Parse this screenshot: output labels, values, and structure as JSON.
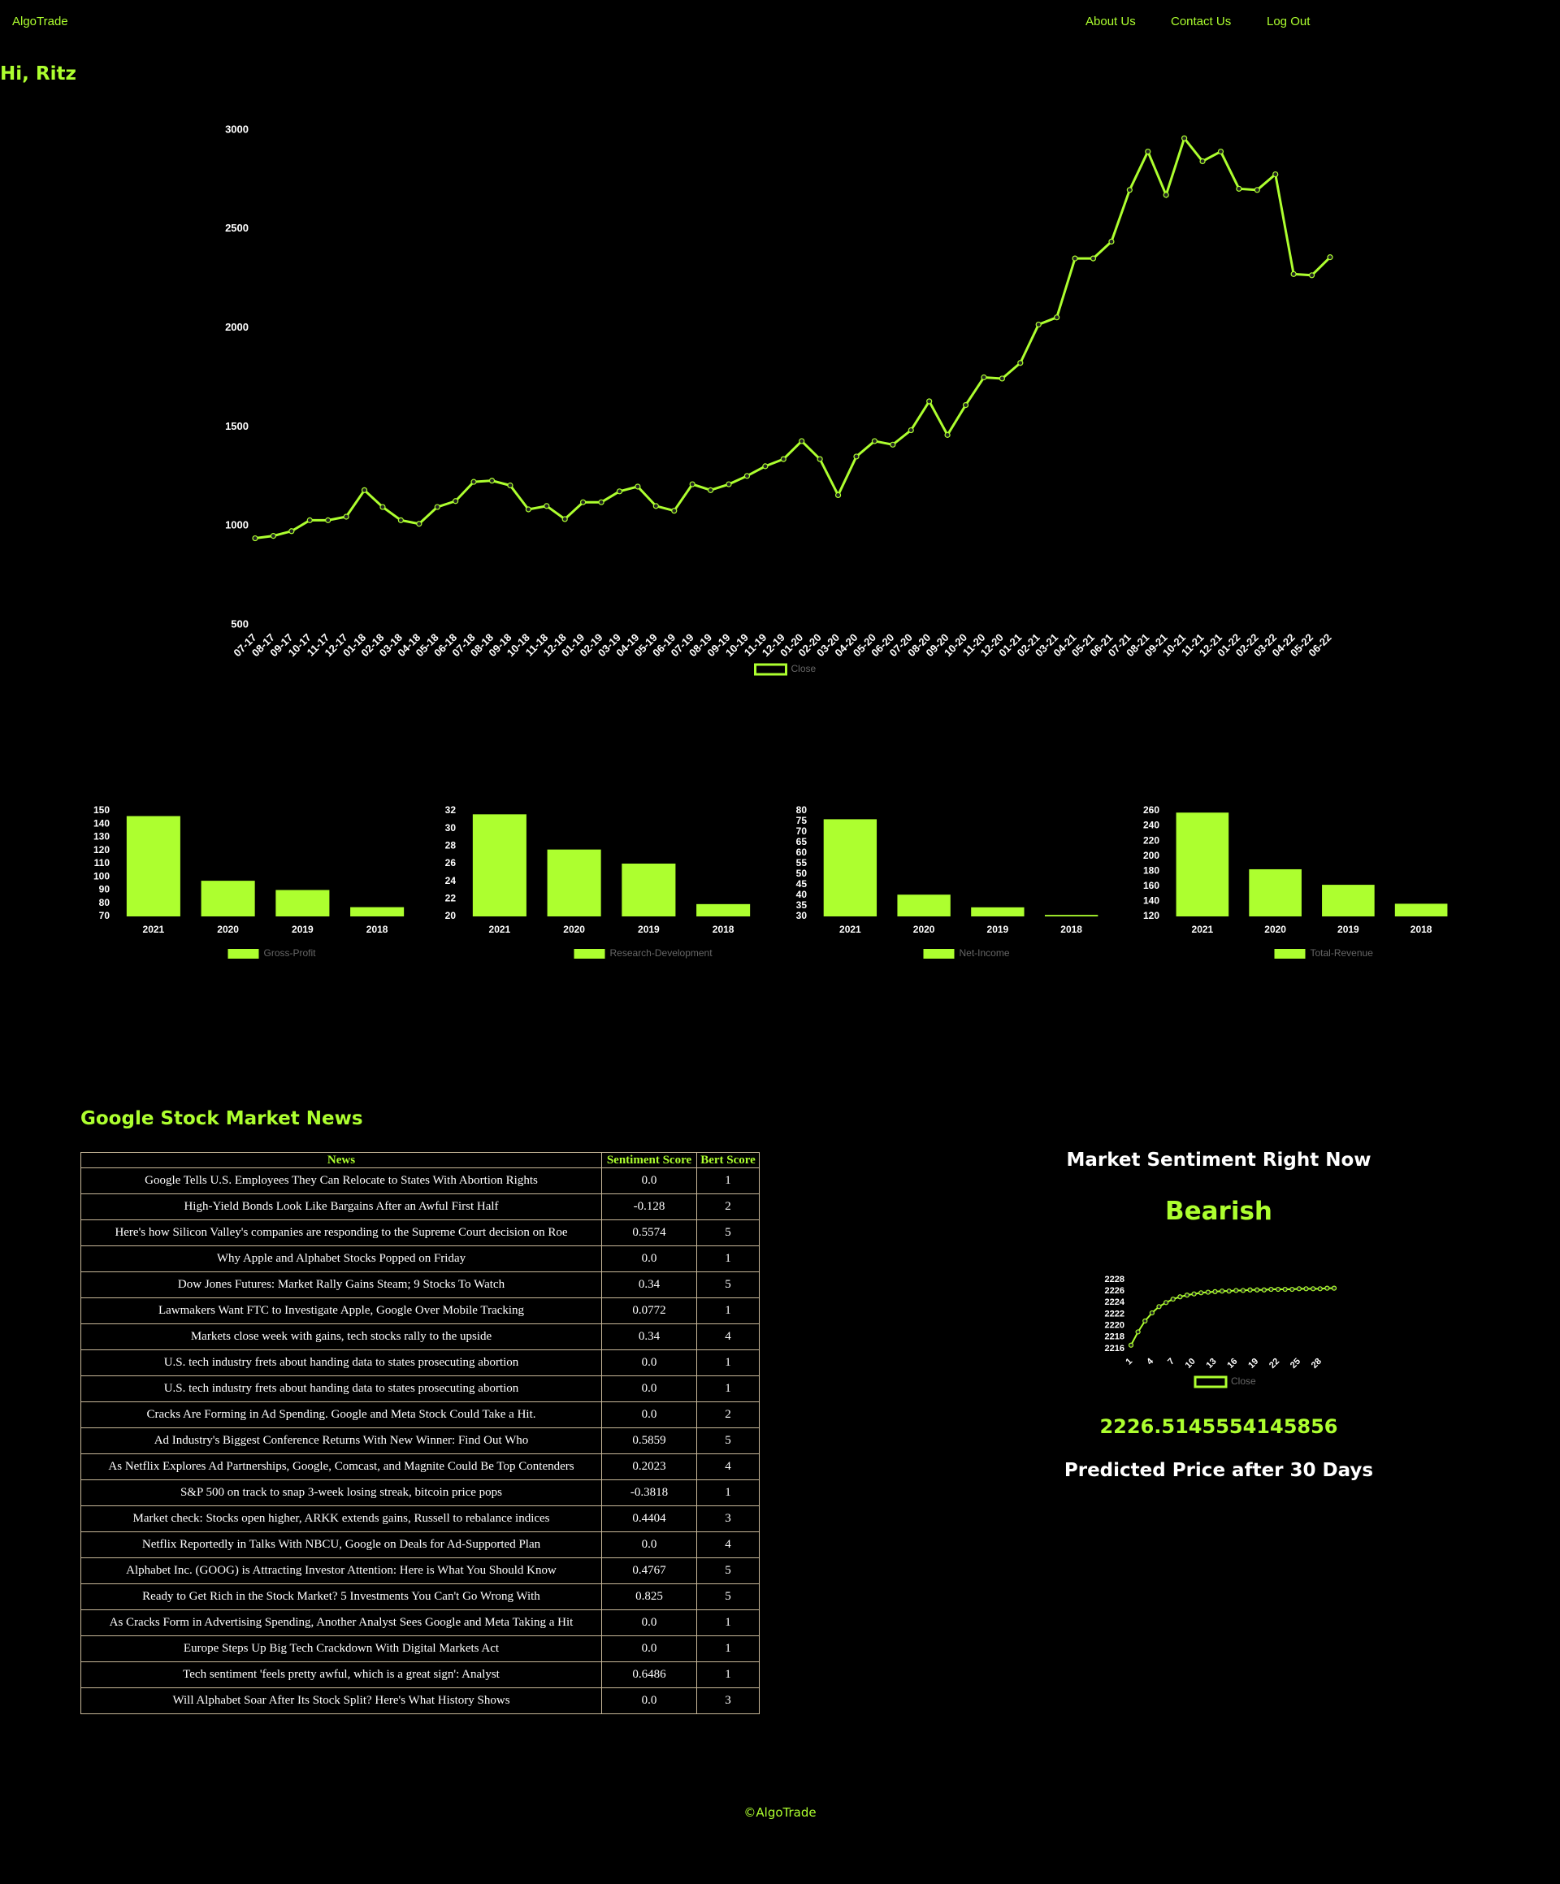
{
  "nav": {
    "brand": "AlgoTrade",
    "links": [
      "About Us",
      "Contact Us",
      "Log Out"
    ]
  },
  "greeting": "Hi, Ritz",
  "chart_data": [
    {
      "type": "line",
      "categories": [
        "07-17",
        "08-17",
        "09-17",
        "10-17",
        "11-17",
        "12-17",
        "01-18",
        "02-18",
        "03-18",
        "04-18",
        "05-18",
        "06-18",
        "07-18",
        "08-18",
        "09-18",
        "10-18",
        "11-18",
        "12-18",
        "01-19",
        "02-19",
        "03-19",
        "04-19",
        "05-19",
        "06-19",
        "07-19",
        "08-19",
        "09-19",
        "10-19",
        "11-19",
        "12-19",
        "01-20",
        "02-20",
        "03-20",
        "04-20",
        "05-20",
        "06-20",
        "07-20",
        "08-20",
        "09-20",
        "10-20",
        "11-20",
        "12-20",
        "01-21",
        "02-21",
        "03-21",
        "04-21",
        "05-21",
        "06-21",
        "07-21",
        "08-21",
        "09-21",
        "10-21",
        "11-21",
        "12-21",
        "01-22",
        "02-22",
        "03-22",
        "04-22",
        "05-22",
        "06-22"
      ],
      "series": [
        {
          "name": "Close",
          "color": "#adff2f",
          "values": [
            937,
            949,
            973,
            1028,
            1028,
            1046,
            1180,
            1095,
            1028,
            1010,
            1095,
            1125,
            1222,
            1228,
            1204,
            1083,
            1100,
            1034,
            1119,
            1119,
            1174,
            1198,
            1100,
            1076,
            1210,
            1180,
            1210,
            1252,
            1301,
            1337,
            1428,
            1337,
            1155,
            1350,
            1428,
            1410,
            1483,
            1629,
            1459,
            1610,
            1750,
            1744,
            1823,
            2017,
            2053,
            2351,
            2351,
            2436,
            2697,
            2891,
            2672,
            2958,
            2842,
            2891,
            2703,
            2697,
            2776,
            2272,
            2266,
            2357
          ]
        }
      ],
      "ylim": [
        500,
        3000
      ],
      "yticks": [
        500,
        1000,
        1500,
        2000,
        2500,
        3000
      ],
      "grid": false
    },
    {
      "type": "bar",
      "categories": [
        "2021",
        "2020",
        "2019",
        "2018"
      ],
      "series": [
        {
          "name": "Gross-Profit",
          "color": "#adff2f",
          "values": [
            146,
            97,
            90,
            77
          ]
        }
      ],
      "ylim": [
        70,
        150
      ],
      "yticks": [
        70,
        80,
        90,
        100,
        110,
        120,
        130,
        140,
        150
      ],
      "grid": false
    },
    {
      "type": "bar",
      "categories": [
        "2021",
        "2020",
        "2019",
        "2018"
      ],
      "series": [
        {
          "name": "Research-Development",
          "color": "#adff2f",
          "values": [
            31.6,
            27.6,
            26,
            21.4
          ]
        }
      ],
      "ylim": [
        20,
        32
      ],
      "yticks": [
        20,
        22,
        24,
        26,
        28,
        30,
        32
      ],
      "grid": false
    },
    {
      "type": "bar",
      "categories": [
        "2021",
        "2020",
        "2019",
        "2018"
      ],
      "series": [
        {
          "name": "Net-Income",
          "color": "#adff2f",
          "values": [
            76,
            40.3,
            34.3,
            30.7
          ]
        }
      ],
      "ylim": [
        30,
        80
      ],
      "yticks": [
        30,
        35,
        40,
        45,
        50,
        55,
        60,
        65,
        70,
        75,
        80
      ],
      "grid": false
    },
    {
      "type": "bar",
      "categories": [
        "2021",
        "2020",
        "2019",
        "2018"
      ],
      "series": [
        {
          "name": "Total-Revenue",
          "color": "#adff2f",
          "values": [
            257.6,
            182.5,
            161.9,
            136.8
          ]
        }
      ],
      "ylim": [
        120,
        260
      ],
      "yticks": [
        120,
        140,
        160,
        180,
        200,
        220,
        240,
        260
      ],
      "grid": false
    },
    {
      "type": "line",
      "categories": [
        "1",
        null,
        null,
        "4",
        null,
        null,
        "7",
        null,
        null,
        "10",
        null,
        null,
        "13",
        null,
        null,
        "16",
        null,
        null,
        "19",
        null,
        null,
        "22",
        null,
        null,
        "25",
        null,
        null,
        "28",
        null,
        null
      ],
      "series": [
        {
          "name": "Close",
          "color": "#adff2f",
          "values": [
            2216.6,
            2218.9,
            2220.8,
            2222.2,
            2223.3,
            2224.0,
            2224.6,
            2225.0,
            2225.3,
            2225.5,
            2225.7,
            2225.8,
            2225.9,
            2226.0,
            2226.0,
            2226.1,
            2226.1,
            2226.2,
            2226.2,
            2226.2,
            2226.3,
            2226.3,
            2226.3,
            2226.3,
            2226.4,
            2226.4,
            2226.4,
            2226.4,
            2226.5,
            2226.5
          ]
        }
      ],
      "ylim": [
        2216,
        2228
      ],
      "yticks": [
        2216,
        2218,
        2220,
        2222,
        2224,
        2226,
        2228
      ],
      "grid": false
    }
  ],
  "news": {
    "title": "Google Stock Market News",
    "columns": [
      "News",
      "Sentiment Score",
      "Bert Score"
    ],
    "rows": [
      [
        "Google Tells U.S. Employees They Can Relocate to States With Abortion Rights",
        "0.0",
        1
      ],
      [
        "High-Yield Bonds Look Like Bargains After an Awful First Half",
        "-0.128",
        2
      ],
      [
        "Here's how Silicon Valley's companies are responding to the Supreme Court decision on Roe",
        "0.5574",
        5
      ],
      [
        "Why Apple and Alphabet Stocks Popped on Friday",
        "0.0",
        1
      ],
      [
        "Dow Jones Futures: Market Rally Gains Steam; 9 Stocks To Watch",
        "0.34",
        5
      ],
      [
        "Lawmakers Want FTC to Investigate Apple, Google Over Mobile Tracking",
        "0.0772",
        1
      ],
      [
        "Markets close week with gains, tech stocks rally to the upside",
        "0.34",
        4
      ],
      [
        "U.S. tech industry frets about handing data to states prosecuting abortion",
        "0.0",
        1
      ],
      [
        "U.S. tech industry frets about handing data to states prosecuting abortion",
        "0.0",
        1
      ],
      [
        "Cracks Are Forming in Ad Spending. Google and Meta Stock Could Take a Hit.",
        "0.0",
        2
      ],
      [
        "Ad Industry's Biggest Conference Returns With New Winner: Find Out Who",
        "0.5859",
        5
      ],
      [
        "As Netflix Explores Ad Partnerships, Google, Comcast, and Magnite Could Be Top Contenders",
        "0.2023",
        4
      ],
      [
        "S&P 500 on track to snap 3-week losing streak, bitcoin price pops",
        "-0.3818",
        1
      ],
      [
        "Market check: Stocks open higher, ARKK extends gains, Russell to rebalance indices",
        "0.4404",
        3
      ],
      [
        "Netflix Reportedly in Talks With NBCU, Google on Deals for Ad-Supported Plan",
        "0.0",
        4
      ],
      [
        "Alphabet Inc. (GOOG) is Attracting Investor Attention: Here is What You Should Know",
        "0.4767",
        5
      ],
      [
        "Ready to Get Rich in the Stock Market? 5 Investments You Can't Go Wrong With",
        "0.825",
        5
      ],
      [
        "As Cracks Form in Advertising Spending, Another Analyst Sees Google and Meta Taking a Hit",
        "0.0",
        1
      ],
      [
        "Europe Steps Up Big Tech Crackdown With Digital Markets Act",
        "0.0",
        1
      ],
      [
        "Tech sentiment 'feels pretty awful, which is a great sign': Analyst",
        "0.6486",
        1
      ],
      [
        "Will Alphabet Soar After Its Stock Split? Here's What History Shows",
        "0.0",
        3
      ]
    ]
  },
  "sentiment": {
    "heading": "Market Sentiment Right Now",
    "label": "Bearish",
    "price": "2226.5145554145856",
    "caption": "Predicted Price after 30 Days"
  },
  "footer": "©AlgoTrade"
}
